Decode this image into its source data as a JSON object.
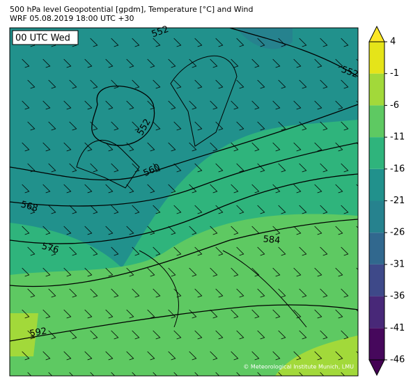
{
  "header": {
    "title": "500 hPa level Geopotential [gpdm], Temperature [°C] and Wind",
    "subtitle": "WRF 05.08.2019 18:00 UTC +30"
  },
  "map": {
    "time_label": "00 UTC Wed",
    "contour_labels": [
      "552",
      "552",
      "552",
      "560",
      "568",
      "576",
      "584",
      "592"
    ],
    "credit": "© Meteorological Institute Munich, LMU"
  },
  "colorbar": {
    "ticks": [
      -46,
      -41,
      -36,
      -31,
      -26,
      -21,
      -16,
      -11,
      -6,
      -1,
      4
    ],
    "colors": [
      "#46085c",
      "#482878",
      "#3e4989",
      "#31688e",
      "#26828e",
      "#21918c",
      "#2fb47c",
      "#5ec962",
      "#a2d93a",
      "#e5e419"
    ],
    "under_color": "#440154",
    "over_color": "#fde725"
  }
}
